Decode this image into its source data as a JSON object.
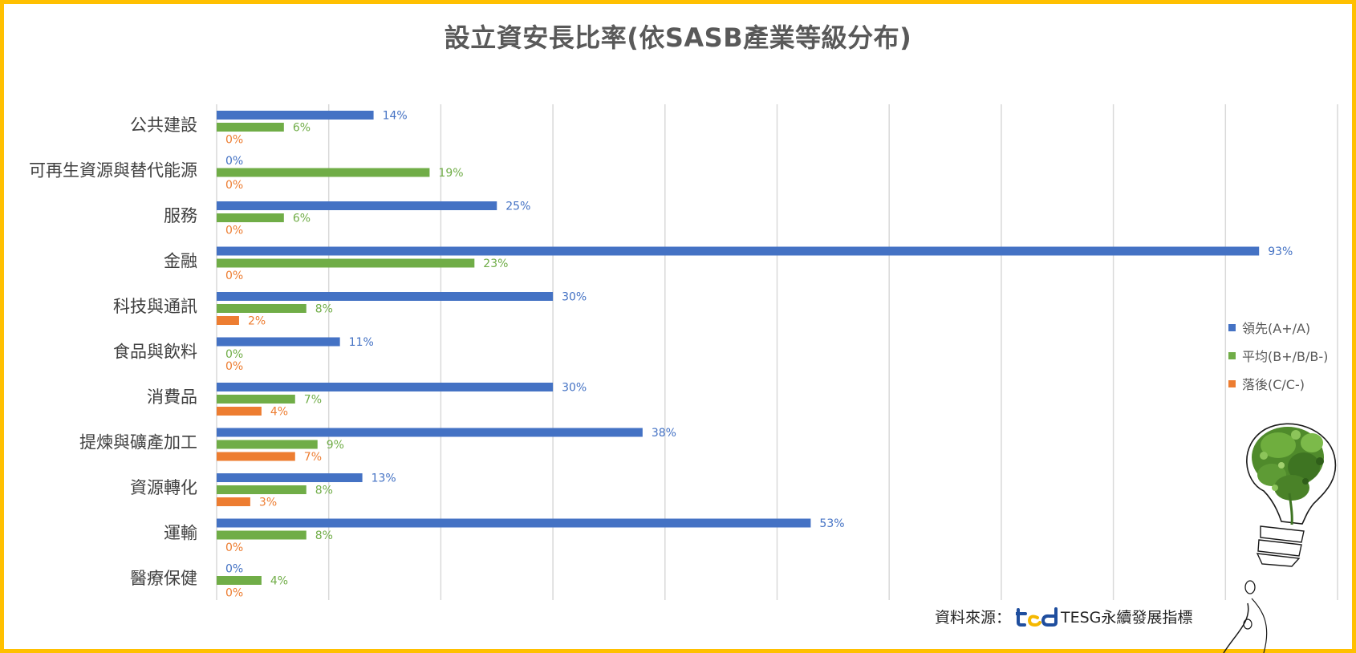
{
  "chart_data": {
    "type": "bar",
    "orientation": "horizontal",
    "title": "設立資安長比率(依SASB產業等級分布)",
    "categories": [
      "公共建設",
      "可再生資源與替代能源",
      "服務",
      "金融",
      "科技與通訊",
      "食品與飲料",
      "消費品",
      "提煉與礦產加工",
      "資源轉化",
      "運輸",
      "醫療保健"
    ],
    "series": [
      {
        "name": "領先(A+/A)",
        "color": "#4472C4",
        "values": [
          14,
          0,
          25,
          93,
          30,
          11,
          30,
          38,
          13,
          53,
          0
        ]
      },
      {
        "name": "平均(B+/B/B-)",
        "color": "#70AD47",
        "values": [
          6,
          19,
          6,
          23,
          8,
          0,
          7,
          9,
          8,
          8,
          4
        ]
      },
      {
        "name": "落後(C/C-)",
        "color": "#ED7D31",
        "values": [
          0,
          0,
          0,
          0,
          2,
          0,
          4,
          7,
          3,
          0,
          0
        ]
      }
    ],
    "value_suffix": "%",
    "xlim": [
      0,
      100
    ],
    "grid": true,
    "legend_position": "right"
  },
  "source": {
    "label": "資料來源：",
    "logo_text": "TESG永續發展指標"
  }
}
